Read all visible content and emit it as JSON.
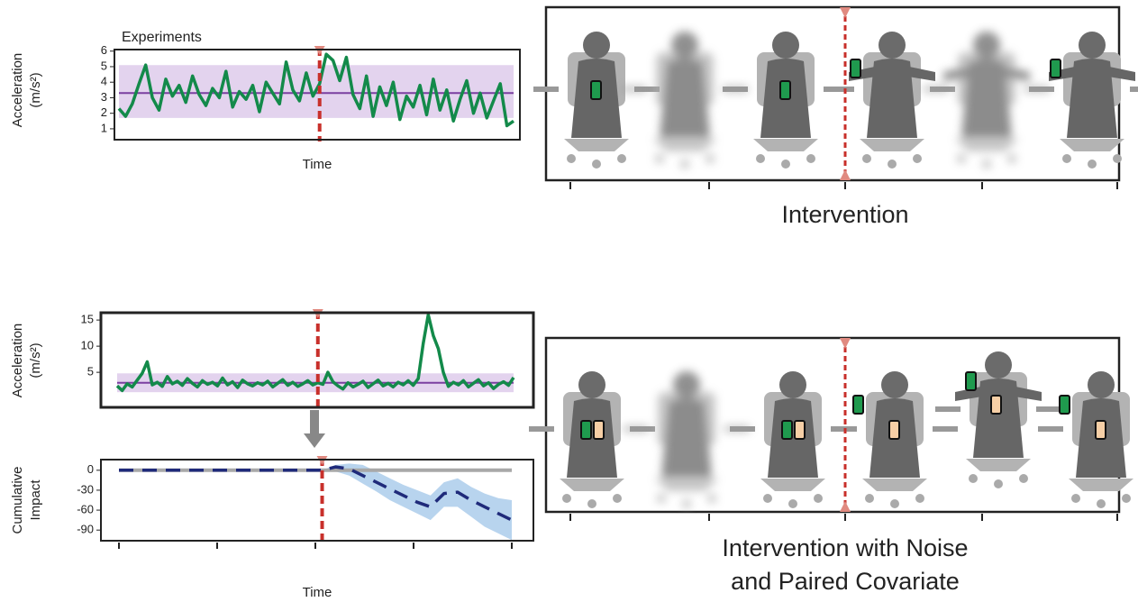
{
  "chart_data": [
    {
      "type": "line",
      "title": "Experiments",
      "ylabel": [
        "Acceleration",
        "(m/s²)"
      ],
      "xlabel": "Time",
      "ylim": [
        0.3,
        6.1
      ],
      "yticks": [
        1,
        2,
        3,
        4,
        5,
        6
      ],
      "series": [
        {
          "color": "#138a4a",
          "values": [
            2.3,
            1.8,
            2.6,
            3.9,
            5.1,
            3.0,
            2.2,
            4.2,
            3.1,
            3.8,
            2.7,
            4.4,
            3.2,
            2.5,
            3.6,
            3.0,
            4.7,
            2.4,
            3.4,
            2.9,
            3.8,
            2.1,
            4.0,
            3.3,
            2.6,
            5.3,
            3.5,
            2.8,
            4.6,
            3.1,
            3.9,
            5.8,
            5.4,
            4.1,
            5.6,
            3.2,
            2.3,
            4.4,
            1.8,
            3.7,
            2.5,
            4.0,
            1.6,
            3.1,
            2.4,
            3.8,
            1.9,
            4.2,
            2.2,
            3.5,
            1.5,
            2.9,
            4.1,
            2.0,
            3.3,
            1.7,
            2.8,
            3.9,
            1.2,
            1.5
          ]
        }
      ],
      "mean": 3.3,
      "mean_color": "#7b3fa0",
      "band": [
        1.7,
        5.1
      ],
      "band_color": "#e3d3ee",
      "intervention": 30,
      "intervention_color": "#c8302b"
    },
    {
      "type": "line",
      "ylabel": [
        "Acceleration",
        "(m/s²)"
      ],
      "ylim": [
        -1.7,
        16.4
      ],
      "yticks": [
        5,
        10,
        15
      ],
      "series": [
        {
          "color": "#138a4a",
          "values": [
            2.4,
            1.5,
            2.8,
            2.2,
            3.5,
            4.8,
            7.0,
            2.6,
            3.1,
            2.3,
            4.2,
            2.8,
            3.3,
            2.5,
            3.8,
            2.9,
            2.2,
            3.4,
            2.7,
            3.1,
            2.4,
            3.9,
            2.6,
            3.2,
            2.1,
            3.5,
            2.8,
            2.4,
            3.0,
            2.6,
            3.3,
            2.2,
            2.9,
            3.6,
            2.5,
            3.1,
            2.3,
            2.8,
            3.4,
            2.6,
            3.0,
            2.7,
            5.0,
            3.2,
            2.4,
            1.8,
            3.0,
            2.2,
            2.7,
            3.3,
            2.1,
            2.8,
            3.5,
            2.4,
            2.9,
            2.2,
            3.1,
            2.6,
            3.4,
            2.5,
            3.8,
            10.5,
            16.0,
            12.0,
            9.5,
            5.0,
            2.3,
            3.1,
            2.6,
            3.4,
            2.2,
            2.9,
            3.6,
            2.4,
            3.0,
            1.9,
            2.7,
            3.2,
            2.5,
            4.0
          ]
        }
      ],
      "mean": 3,
      "mean_color": "#7b3fa0",
      "band": [
        1.2,
        4.8
      ],
      "band_color": "#e3d3ee",
      "intervention": 40,
      "intervention_color": "#c8302b"
    },
    {
      "type": "impact",
      "ylabel": [
        "Cumulative",
        "Impact"
      ],
      "xlabel": "Time",
      "ylim": [
        -106,
        16
      ],
      "yticks": [
        0,
        -30,
        -60,
        -90
      ],
      "reference": 0,
      "reference_color": "#a8a8a8",
      "series": [
        {
          "color": "#1f2a7a",
          "values": [
            0,
            0,
            0,
            0,
            0,
            0,
            0,
            0,
            0,
            0,
            0,
            0,
            0,
            0,
            0,
            0,
            5,
            2,
            -8,
            -18,
            -28,
            -38,
            -48,
            -55,
            -35,
            -33,
            -45,
            -55,
            -65,
            -75
          ]
        }
      ],
      "band_lower": [
        0,
        0,
        0,
        0,
        0,
        0,
        0,
        0,
        0,
        0,
        0,
        0,
        0,
        0,
        0,
        0,
        -2,
        -8,
        -20,
        -32,
        -45,
        -55,
        -65,
        -75,
        -55,
        -55,
        -70,
        -85,
        -95,
        -105
      ],
      "band_upper": [
        0,
        0,
        0,
        0,
        0,
        0,
        0,
        0,
        0,
        0,
        0,
        0,
        0,
        0,
        0,
        0,
        8,
        10,
        8,
        -2,
        -12,
        -22,
        -30,
        -38,
        -18,
        -12,
        -25,
        -35,
        -42,
        -45
      ],
      "band_color": "#b8d4ee",
      "intervention": 15,
      "intervention_color": "#c8302b"
    }
  ],
  "illustrations": [
    {
      "caption": [
        "Intervention"
      ]
    },
    {
      "caption": [
        "Intervention with Noise",
        "and Paired Covariate"
      ]
    }
  ]
}
